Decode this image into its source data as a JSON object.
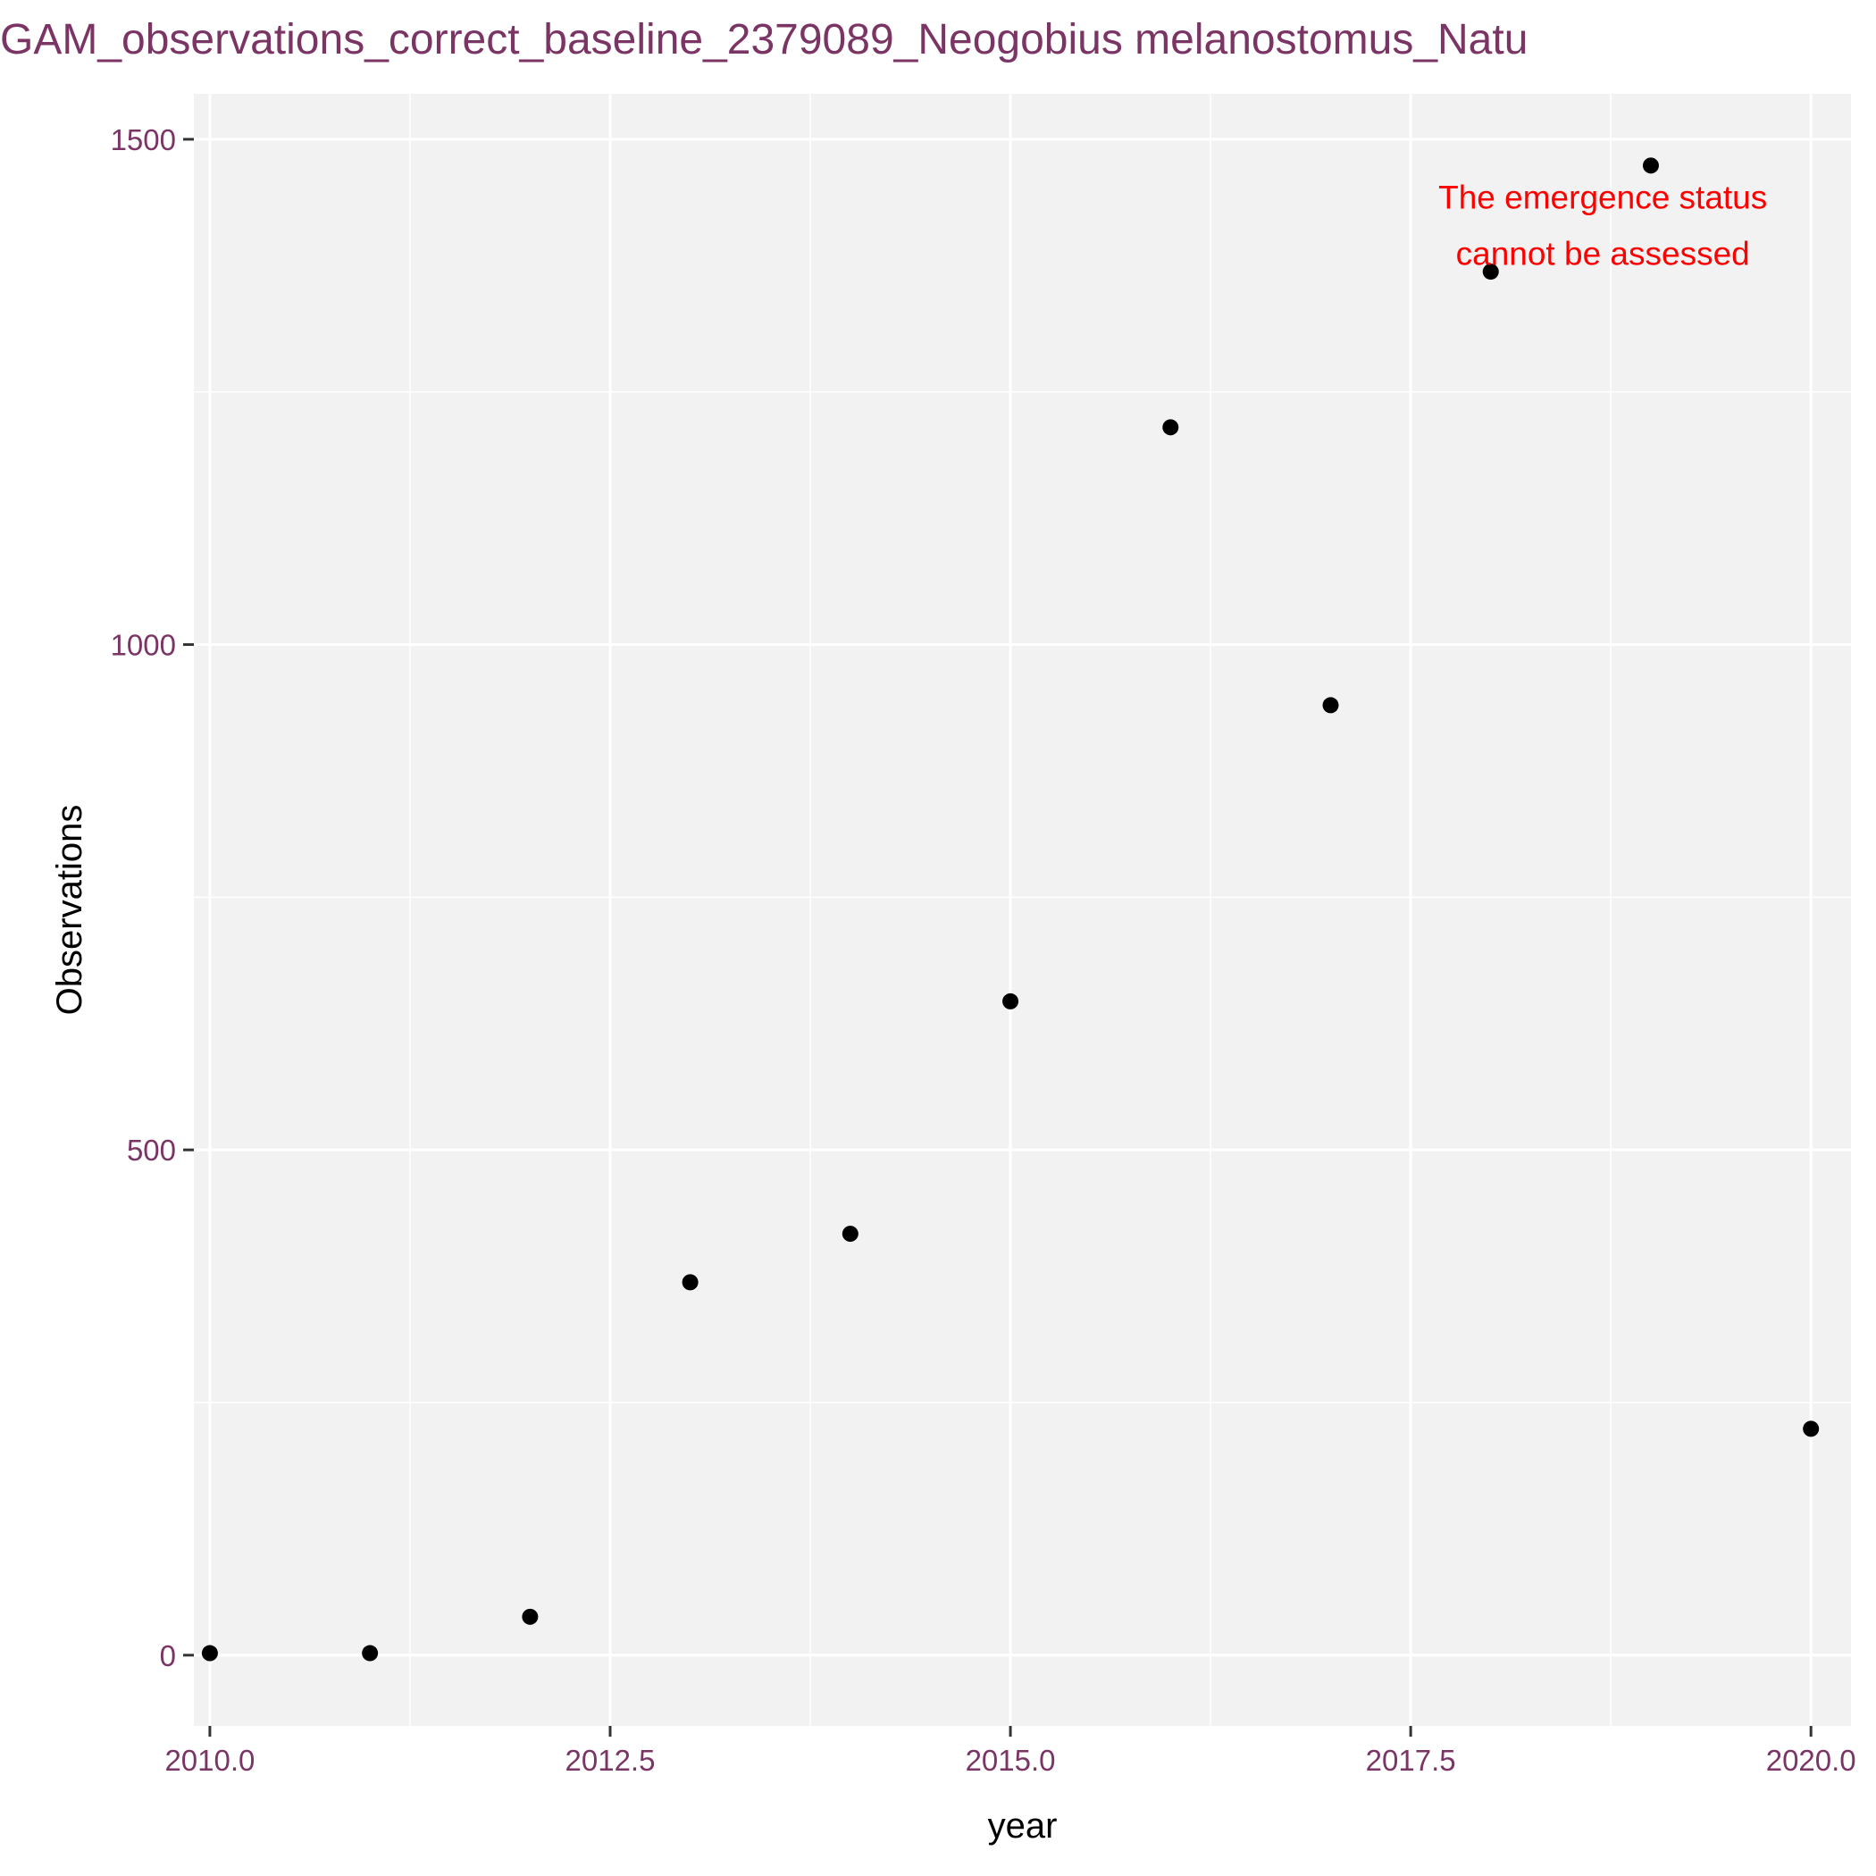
{
  "chart_data": {
    "type": "scatter",
    "title": "GAM_observations_correct_baseline_2379089_Neogobius melanostomus_Natu",
    "xlabel": "year",
    "ylabel": "Observations",
    "xlim": [
      2009.9,
      2020.25
    ],
    "ylim": [
      -70,
      1545
    ],
    "x_ticks": [
      2010.0,
      2012.5,
      2015.0,
      2017.5,
      2020.0
    ],
    "x_tick_labels": [
      "2010.0",
      "2012.5",
      "2015.0",
      "2017.5",
      "2020.0"
    ],
    "y_ticks": [
      0,
      500,
      1000,
      1500
    ],
    "y_tick_labels": [
      "0",
      "500",
      "1000",
      "1500"
    ],
    "grid": true,
    "points": [
      {
        "x": 2010,
        "y": 2
      },
      {
        "x": 2011,
        "y": 2
      },
      {
        "x": 2012,
        "y": 38
      },
      {
        "x": 2013,
        "y": 369
      },
      {
        "x": 2014,
        "y": 417
      },
      {
        "x": 2015,
        "y": 647
      },
      {
        "x": 2016,
        "y": 1215
      },
      {
        "x": 2017,
        "y": 940
      },
      {
        "x": 2018,
        "y": 1369
      },
      {
        "x": 2019,
        "y": 1474
      },
      {
        "x": 2020,
        "y": 224
      }
    ],
    "annotation": {
      "lines": [
        "The emergence status",
        "cannot be assessed"
      ],
      "color": "#ff0000",
      "x": 2018.7,
      "y": 1415
    },
    "colors": {
      "panel": "#f2f2f2",
      "grid": "#ffffff",
      "point": "#000000",
      "tick_label": "#7b3565",
      "title": "#7b3565"
    }
  }
}
